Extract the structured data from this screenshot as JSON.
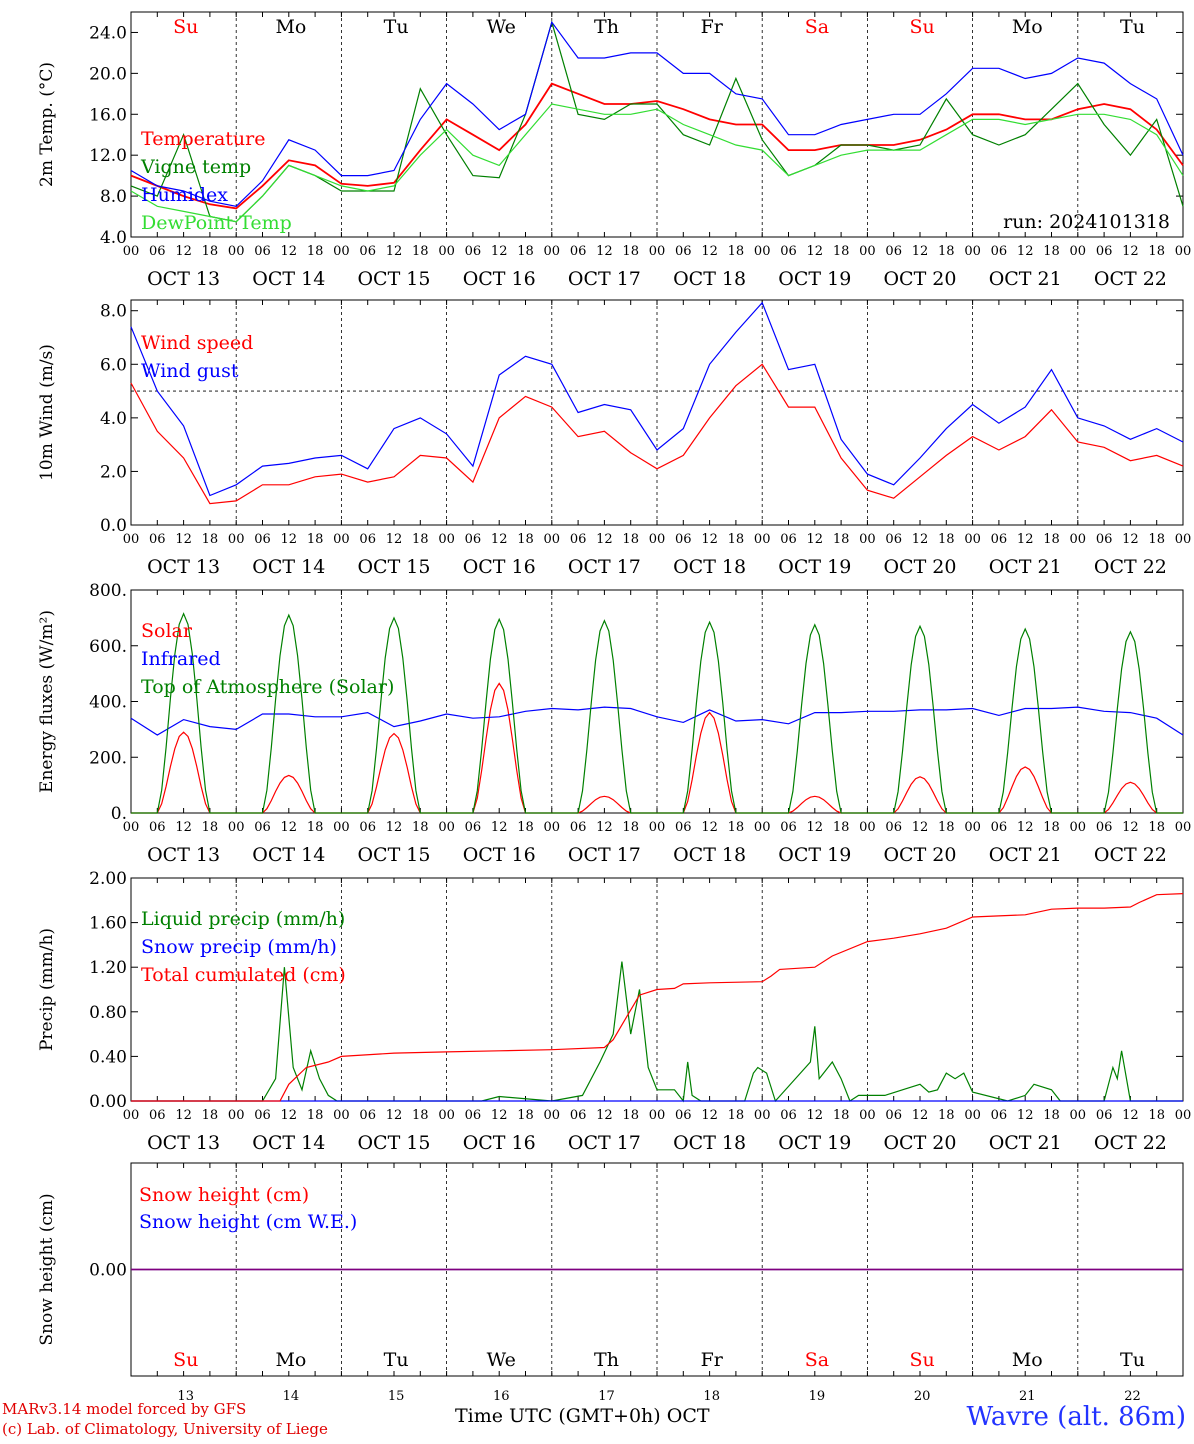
{
  "run_label": "run: 2024101318",
  "footer": {
    "credit_line1": "MARv3.14 model forced by GFS",
    "credit_line2": "(c) Lab. of Climatology, University of Liege",
    "station": "Wavre (alt. 86m)",
    "x_title": "Time UTC (GMT+0h)",
    "x_month": "OCT"
  },
  "colors": {
    "red": "#ff0000",
    "blue": "#0000ff",
    "green": "#008000",
    "lightgreen": "#33dd33",
    "purple": "#7f007f"
  },
  "days": {
    "weekday_labels": [
      "Su",
      "Mo",
      "Tu",
      "We",
      "Th",
      "Fr",
      "Sa",
      "Su",
      "Mo",
      "Tu"
    ],
    "weekend_flags": [
      true,
      false,
      false,
      false,
      false,
      false,
      true,
      true,
      false,
      false
    ],
    "date_labels": [
      "OCT 13",
      "OCT 14",
      "OCT 15",
      "OCT 16",
      "OCT 17",
      "OCT 18",
      "OCT 19",
      "OCT 20",
      "OCT 21",
      "OCT 22"
    ],
    "day_numbers": [
      "13",
      "14",
      "15",
      "16",
      "17",
      "18",
      "19",
      "20",
      "21",
      "22"
    ],
    "hour_labels": [
      "00",
      "06",
      "12",
      "18"
    ],
    "final_hour_label": "00"
  },
  "chart_data": [
    {
      "type": "line",
      "ylabel": "2m Temp. (°C)",
      "ylim": [
        4,
        26
      ],
      "yticks": [
        4,
        8,
        12,
        16,
        20,
        24
      ],
      "ytick_labels": [
        "4.0",
        "8.0",
        "12.0",
        "16.0",
        "20.0",
        "24.0"
      ],
      "xlim_hours": [
        0,
        240
      ],
      "legend": "top-left",
      "series": [
        {
          "name": "Temperature",
          "color": "#ff0000",
          "x": [
            0,
            6,
            12,
            18,
            24,
            30,
            36,
            42,
            48,
            54,
            60,
            66,
            72,
            78,
            84,
            90,
            96,
            102,
            108,
            114,
            120,
            126,
            132,
            138,
            144,
            150,
            156,
            162,
            168,
            174,
            180,
            186,
            192,
            198,
            204,
            210,
            216,
            222,
            228,
            234,
            240
          ],
          "y": [
            10,
            9,
            8,
            7.2,
            6.8,
            9,
            11.5,
            11,
            9.2,
            9,
            9.3,
            12.5,
            15.5,
            14,
            12.5,
            15,
            19,
            18,
            17,
            17,
            17.3,
            16.5,
            15.5,
            15,
            15,
            12.5,
            12.5,
            13,
            13,
            13,
            13.5,
            14.5,
            16,
            16,
            15.5,
            15.5,
            16.5,
            17,
            16.5,
            14.5,
            11
          ]
        },
        {
          "name": "Vigne temp",
          "color": "#008000",
          "x": [
            0,
            6,
            12,
            18,
            24,
            30,
            36,
            42,
            48,
            54,
            60,
            66,
            72,
            78,
            84,
            90,
            96,
            102,
            108,
            114,
            120,
            126,
            132,
            138,
            144,
            150,
            156,
            162,
            168,
            174,
            180,
            186,
            192,
            198,
            204,
            210,
            216,
            222,
            228,
            234,
            240
          ],
          "y": [
            9,
            8,
            14,
            6,
            5.5,
            8,
            11,
            10,
            8.5,
            8.5,
            8.5,
            18.5,
            14,
            10,
            9.8,
            16,
            25,
            16,
            15.5,
            17,
            17,
            14,
            13,
            19.5,
            13.5,
            10,
            11,
            13,
            13,
            12.5,
            13,
            17.5,
            14,
            13,
            14,
            16.5,
            19,
            15,
            12,
            15.5,
            7
          ]
        },
        {
          "name": "Humidex",
          "color": "#0000ff",
          "x": [
            0,
            6,
            12,
            18,
            24,
            30,
            36,
            42,
            48,
            54,
            60,
            66,
            72,
            78,
            84,
            90,
            96,
            102,
            108,
            114,
            120,
            126,
            132,
            138,
            144,
            150,
            156,
            162,
            168,
            174,
            180,
            186,
            192,
            198,
            204,
            210,
            216,
            222,
            228,
            234,
            240
          ],
          "y": [
            10.5,
            9,
            8.5,
            7.5,
            7,
            9.5,
            13.5,
            12.5,
            10,
            10,
            10.5,
            15.5,
            19,
            17,
            14.5,
            16,
            25,
            21.5,
            21.5,
            22,
            22,
            20,
            20,
            18,
            17.5,
            14,
            14,
            15,
            15.5,
            16,
            16,
            18,
            20.5,
            20.5,
            19.5,
            20,
            21.5,
            21,
            19,
            17.5,
            12
          ]
        },
        {
          "name": "DewPoint Temp",
          "color": "#33dd33",
          "x": [
            0,
            6,
            12,
            18,
            24,
            30,
            36,
            42,
            48,
            54,
            60,
            66,
            72,
            78,
            84,
            90,
            96,
            102,
            108,
            114,
            120,
            126,
            132,
            138,
            144,
            150,
            156,
            162,
            168,
            174,
            180,
            186,
            192,
            198,
            204,
            210,
            216,
            222,
            228,
            234,
            240
          ],
          "y": [
            8.5,
            7,
            6.5,
            6,
            5.5,
            8,
            11,
            10,
            9,
            8.5,
            9,
            12,
            14.5,
            12,
            11,
            14,
            17,
            16.5,
            16,
            16,
            16.5,
            15,
            14,
            13,
            12.5,
            10,
            11,
            12,
            12.5,
            12.5,
            12.5,
            14,
            15.5,
            15.5,
            15,
            15.5,
            16,
            16,
            15.5,
            14,
            10
          ]
        }
      ]
    },
    {
      "type": "line",
      "ylabel": "10m Wind (m/s)",
      "ylim": [
        0,
        8.4
      ],
      "yticks": [
        0,
        2,
        4,
        6,
        8
      ],
      "ytick_labels": [
        "0.0",
        "2.0",
        "4.0",
        "6.0",
        "8.0"
      ],
      "reference_line": 5,
      "xlim_hours": [
        0,
        240
      ],
      "legend": "top-left",
      "series": [
        {
          "name": "Wind speed",
          "color": "#ff0000",
          "x": [
            0,
            6,
            12,
            18,
            24,
            30,
            36,
            42,
            48,
            54,
            60,
            66,
            72,
            78,
            84,
            90,
            96,
            102,
            108,
            114,
            120,
            126,
            132,
            138,
            144,
            150,
            156,
            162,
            168,
            174,
            180,
            186,
            192,
            198,
            204,
            210,
            216,
            222,
            228,
            234,
            240
          ],
          "y": [
            5.3,
            3.5,
            2.5,
            0.8,
            0.9,
            1.5,
            1.5,
            1.8,
            1.9,
            1.6,
            1.8,
            2.6,
            2.5,
            1.6,
            4,
            4.8,
            4.4,
            3.3,
            3.5,
            2.7,
            2.1,
            2.6,
            4,
            5.2,
            6,
            4.4,
            4.4,
            2.5,
            1.3,
            1,
            1.8,
            2.6,
            3.3,
            2.8,
            3.3,
            4.3,
            3.1,
            2.9,
            2.4,
            2.6,
            2.2
          ]
        },
        {
          "name": "Wind gust",
          "color": "#0000ff",
          "x": [
            0,
            6,
            12,
            18,
            24,
            30,
            36,
            42,
            48,
            54,
            60,
            66,
            72,
            78,
            84,
            90,
            96,
            102,
            108,
            114,
            120,
            126,
            132,
            138,
            144,
            150,
            156,
            162,
            168,
            174,
            180,
            186,
            192,
            198,
            204,
            210,
            216,
            222,
            228,
            234,
            240
          ],
          "y": [
            7.4,
            5,
            3.7,
            1.1,
            1.5,
            2.2,
            2.3,
            2.5,
            2.6,
            2.1,
            3.6,
            4,
            3.4,
            2.2,
            5.6,
            6.3,
            6,
            4.2,
            4.5,
            4.3,
            2.8,
            3.6,
            6,
            7.2,
            8.3,
            5.8,
            6,
            3.2,
            1.9,
            1.5,
            2.5,
            3.6,
            4.5,
            3.8,
            4.4,
            5.8,
            4,
            3.7,
            3.2,
            3.6,
            3.1
          ]
        }
      ]
    },
    {
      "type": "line",
      "ylabel": "Energy fluxes (W/m²)",
      "ylim": [
        0,
        800
      ],
      "yticks": [
        0,
        200,
        400,
        600,
        800
      ],
      "ytick_labels": [
        "0.",
        "200.",
        "400.",
        "600.",
        "800."
      ],
      "xlim_hours": [
        0,
        240
      ],
      "legend": "top-left",
      "series": [
        {
          "name": "Solar",
          "color": "#ff0000",
          "shape": "diurnal",
          "peaks": [
            290,
            135,
            285,
            465,
            60,
            360,
            60,
            130,
            165,
            110
          ]
        },
        {
          "name": "Infrared",
          "color": "#0000ff",
          "x": [
            0,
            6,
            12,
            18,
            24,
            30,
            36,
            42,
            48,
            54,
            60,
            66,
            72,
            78,
            84,
            90,
            96,
            102,
            108,
            114,
            120,
            126,
            132,
            138,
            144,
            150,
            156,
            162,
            168,
            174,
            180,
            186,
            192,
            198,
            204,
            210,
            216,
            222,
            228,
            234,
            240
          ],
          "y": [
            340,
            280,
            335,
            310,
            300,
            355,
            355,
            345,
            345,
            360,
            310,
            330,
            355,
            340,
            345,
            365,
            375,
            370,
            380,
            375,
            345,
            325,
            370,
            330,
            335,
            320,
            360,
            360,
            365,
            365,
            370,
            370,
            375,
            350,
            375,
            375,
            380,
            365,
            360,
            340,
            280
          ]
        },
        {
          "name": "Top of Atmosphere (Solar)",
          "color": "#008000",
          "shape": "diurnal",
          "peaks": [
            715,
            710,
            700,
            695,
            690,
            685,
            675,
            670,
            660,
            650
          ]
        }
      ]
    },
    {
      "type": "line",
      "ylabel": "Precip (mm/h)",
      "ylim": [
        0,
        2
      ],
      "yticks": [
        0,
        0.4,
        0.8,
        1.2,
        1.6,
        2.0
      ],
      "ytick_labels": [
        "0.00",
        "0.40",
        "0.80",
        "1.20",
        "1.60",
        "2.00"
      ],
      "xlim_hours": [
        0,
        240
      ],
      "legend": "top-left",
      "series": [
        {
          "name": "Liquid precip (mm/h)",
          "color": "#008000",
          "x": [
            0,
            30,
            33,
            35,
            37,
            39,
            41,
            43,
            45,
            47,
            49,
            60,
            80,
            84,
            96,
            103,
            107,
            110,
            112,
            114,
            116,
            118,
            120,
            124,
            126,
            127,
            128,
            130,
            140,
            142,
            143,
            145,
            147,
            155,
            156,
            157,
            158,
            160,
            162,
            164,
            166,
            172,
            176,
            180,
            182,
            184,
            186,
            188,
            190,
            192,
            200,
            204,
            206,
            210,
            212,
            214,
            222,
            224,
            225,
            226,
            228,
            240
          ],
          "y": [
            0,
            0,
            0.2,
            1.2,
            0.3,
            0.1,
            0.45,
            0.2,
            0.05,
            0,
            0,
            0,
            0,
            0.04,
            0,
            0.05,
            0.35,
            0.6,
            1.25,
            0.6,
            1,
            0.3,
            0.1,
            0.1,
            0,
            0.35,
            0.05,
            0,
            0,
            0.25,
            0.3,
            0.25,
            0,
            0.35,
            0.67,
            0.2,
            0.25,
            0.35,
            0.2,
            0,
            0.05,
            0.05,
            0.1,
            0.15,
            0.08,
            0.1,
            0.25,
            0.2,
            0.25,
            0.08,
            0,
            0.05,
            0.15,
            0.1,
            0,
            0,
            0,
            0.3,
            0.2,
            0.45,
            0,
            0
          ]
        },
        {
          "name": "Snow precip (mm/h)",
          "color": "#0000ff",
          "x": [
            0,
            240
          ],
          "y": [
            0,
            0
          ]
        },
        {
          "name": "Total cumulated (cm)",
          "color": "#ff0000",
          "x": [
            0,
            34,
            36,
            40,
            45,
            48,
            60,
            72,
            84,
            96,
            108,
            110,
            113,
            116,
            120,
            124,
            126,
            132,
            144,
            146,
            148,
            152,
            156,
            160,
            168,
            174,
            180,
            186,
            192,
            198,
            204,
            210,
            216,
            222,
            228,
            230,
            234,
            240
          ],
          "y": [
            0,
            0,
            0.15,
            0.3,
            0.35,
            0.4,
            0.43,
            0.44,
            0.45,
            0.46,
            0.48,
            0.55,
            0.75,
            0.95,
            1.0,
            1.01,
            1.05,
            1.06,
            1.07,
            1.12,
            1.18,
            1.19,
            1.2,
            1.3,
            1.43,
            1.46,
            1.5,
            1.55,
            1.65,
            1.66,
            1.67,
            1.72,
            1.73,
            1.73,
            1.74,
            1.78,
            1.85,
            1.86
          ]
        }
      ]
    },
    {
      "type": "line",
      "ylabel": "Snow height (cm)",
      "yticks": [
        0
      ],
      "ytick_labels": [
        "0.00"
      ],
      "xlim_hours": [
        0,
        240
      ],
      "legend": "top-left",
      "series": [
        {
          "name": "Snow height (cm)",
          "color": "#ff0000",
          "x": [
            0,
            240
          ],
          "y": [
            0,
            0
          ]
        },
        {
          "name": "Snow height (cm W.E.)",
          "color": "#0000ff",
          "x": [
            0,
            240
          ],
          "y": [
            0,
            0
          ]
        }
      ]
    }
  ]
}
